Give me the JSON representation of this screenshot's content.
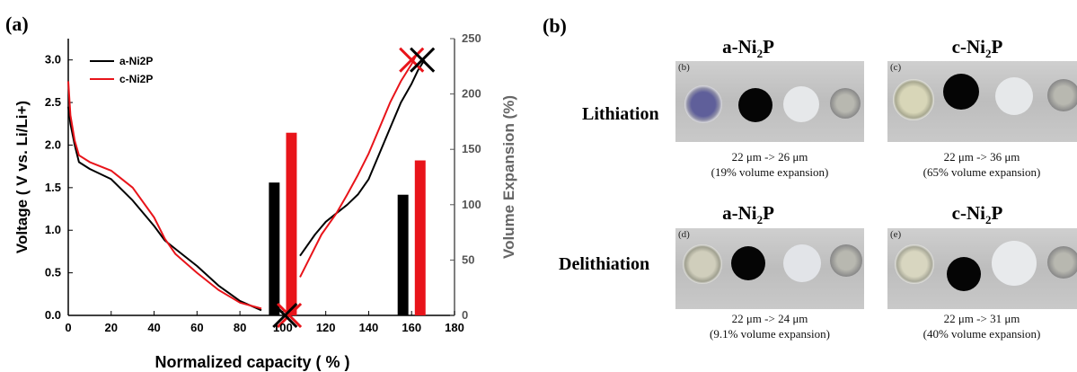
{
  "panel_a_label": "(a)",
  "panel_b_label": "(b)",
  "chart_data": {
    "type": "line",
    "xlabel": "Normalized capacity ( % )",
    "ylabel": "Voltage ( V vs. Li/Li+)",
    "ylabel_right": "Volume Expansion (%)",
    "xlim": [
      0,
      180
    ],
    "ylim": [
      0,
      3.25
    ],
    "ylim_right": [
      0,
      250
    ],
    "x_ticks": [
      "0",
      "20",
      "40",
      "60",
      "80",
      "100",
      "120",
      "140",
      "160",
      "180"
    ],
    "y_ticks": [
      "0.0",
      "0.5",
      "1.0",
      "1.5",
      "2.0",
      "2.5",
      "3.0"
    ],
    "y_right_ticks": [
      "0",
      "50",
      "100",
      "150",
      "200",
      "250"
    ],
    "legend": {
      "position": "top-left"
    },
    "series": [
      {
        "name": "a-Ni2P",
        "color": "#000000",
        "lithiation": {
          "x": [
            0,
            1,
            3,
            5,
            10,
            20,
            30,
            40,
            45,
            50,
            60,
            70,
            80,
            90
          ],
          "y": [
            2.45,
            2.25,
            2.0,
            1.8,
            1.72,
            1.6,
            1.35,
            1.05,
            0.88,
            0.78,
            0.58,
            0.35,
            0.17,
            0.06
          ]
        },
        "delithiation": {
          "x": [
            108,
            115,
            120,
            125,
            130,
            135,
            140,
            145,
            150,
            155,
            160,
            163,
            166
          ],
          "y": [
            0.7,
            0.95,
            1.1,
            1.2,
            1.3,
            1.42,
            1.6,
            1.9,
            2.2,
            2.5,
            2.72,
            2.88,
            3.0
          ]
        }
      },
      {
        "name": "c-Ni2P",
        "color": "#e8141a",
        "lithiation": {
          "x": [
            0,
            1,
            3,
            5,
            10,
            20,
            30,
            40,
            45,
            50,
            60,
            70,
            80,
            90
          ],
          "y": [
            2.75,
            2.35,
            2.05,
            1.88,
            1.8,
            1.7,
            1.5,
            1.15,
            0.9,
            0.72,
            0.5,
            0.3,
            0.15,
            0.08
          ]
        },
        "delithiation": {
          "x": [
            108,
            112,
            118,
            125,
            130,
            135,
            140,
            145,
            150,
            155,
            160,
            162
          ],
          "y": [
            0.45,
            0.65,
            0.95,
            1.2,
            1.42,
            1.65,
            1.9,
            2.2,
            2.5,
            2.75,
            2.95,
            3.05
          ]
        }
      }
    ],
    "bars": [
      {
        "name": "a-Ni2P",
        "x": 96,
        "value": 120,
        "color": "#000000"
      },
      {
        "name": "c-Ni2P",
        "x": 104,
        "value": 165,
        "color": "#e8141a"
      },
      {
        "name": "a-Ni2P",
        "x": 156,
        "value": 109,
        "color": "#000000"
      },
      {
        "name": "c-Ni2P",
        "x": 164,
        "value": 140,
        "color": "#e8141a"
      }
    ],
    "cross_markers": [
      {
        "x": 103,
        "y": 0.0,
        "color": "#e8141a"
      },
      {
        "x": 101,
        "y": 0.0,
        "color": "#000000"
      },
      {
        "x": 160,
        "y": 3.0,
        "color": "#e8141a"
      },
      {
        "x": 165,
        "y": 3.0,
        "color": "#000000"
      }
    ]
  },
  "panel_b": {
    "col1_title_main": "a-Ni",
    "col1_title_sub": "2",
    "col1_title_end": "P",
    "col2_title_main": "c-Ni",
    "col2_title_sub": "2",
    "col2_title_end": "P",
    "row1_label": "Lithiation",
    "row2_label": "Delithiation",
    "photo_letters": [
      "(b)",
      "(c)",
      "(d)",
      "(e)"
    ],
    "captions": [
      {
        "line1": "22 μm -> 26 μm",
        "line2": "(19% volume expansion)"
      },
      {
        "line1": "22 μm -> 36 μm",
        "line2": "(65% volume expansion)"
      },
      {
        "line1": "22 μm -> 24 μm",
        "line2": "(9.1% volume expansion)"
      },
      {
        "line1": "22 μm -> 31 μm",
        "line2": "(40% volume expansion)"
      }
    ]
  }
}
